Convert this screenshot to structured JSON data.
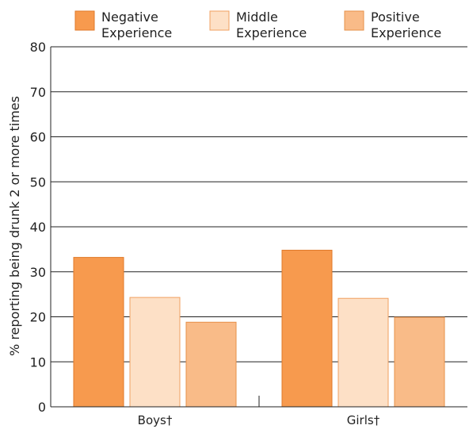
{
  "chart_data": {
    "type": "bar",
    "categories": [
      "Boys†",
      "Girls†"
    ],
    "series": [
      {
        "name": "Negative Experience",
        "legend_lines": [
          "Negative",
          "Experience"
        ],
        "values": [
          33.2,
          34.8
        ],
        "color": "#f79a4e",
        "stroke": "#e07a2a"
      },
      {
        "name": "Middle Experience",
        "legend_lines": [
          "Middle",
          "Experience"
        ],
        "values": [
          24.3,
          24.1
        ],
        "color": "#fde0c6",
        "stroke": "#f0a060"
      },
      {
        "name": "Positive Experience",
        "legend_lines": [
          "Positive",
          "Experience"
        ],
        "values": [
          18.8,
          19.9
        ],
        "color": "#f9bb88",
        "stroke": "#e6904a"
      }
    ],
    "title": "",
    "xlabel": "",
    "ylabel": "% reporting being drunk 2 or more times",
    "ylim": [
      0,
      80
    ],
    "yticks": [
      "0",
      "10",
      "20",
      "30",
      "40",
      "50",
      "60",
      "70",
      "80"
    ],
    "grid": true,
    "legend_position": "top"
  }
}
